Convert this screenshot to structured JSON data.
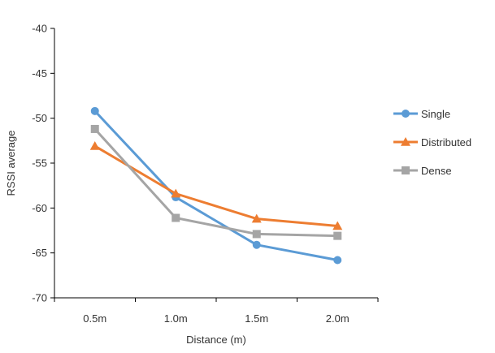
{
  "chart_data": {
    "type": "line",
    "title": "",
    "xlabel": "Distance (m)",
    "ylabel": "RSSI average",
    "categories": [
      "0.5m",
      "1.0m",
      "1.5m",
      "2.0m"
    ],
    "ylim": [
      -70,
      -40
    ],
    "yticks": [
      "-40",
      "-45",
      "-50",
      "-55",
      "-60",
      "-65",
      "-70"
    ],
    "grid": false,
    "legend_position": "right",
    "series": [
      {
        "name": "Single",
        "values": [
          -49.2,
          -58.8,
          -64.1,
          -65.8
        ],
        "color": "#5b9bd5",
        "marker": "circle"
      },
      {
        "name": "Distributed",
        "values": [
          -53.1,
          -58.4,
          -61.2,
          -62.0
        ],
        "color": "#ed7d31",
        "marker": "triangle"
      },
      {
        "name": "Dense",
        "values": [
          -51.2,
          -61.1,
          -62.9,
          -63.1
        ],
        "color": "#a5a5a5",
        "marker": "square"
      }
    ]
  }
}
